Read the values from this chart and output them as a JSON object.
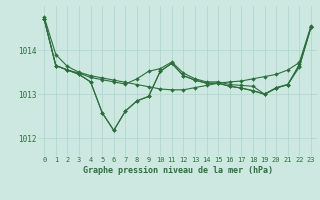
{
  "background_color": "#cce8e0",
  "grid_color": "#aad4cc",
  "line_color": "#2d6e3e",
  "title": "Graphe pression niveau de la mer (hPa)",
  "xlim": [
    -0.5,
    23.5
  ],
  "ylim": [
    1011.6,
    1015.0
  ],
  "yticks": [
    1012,
    1013,
    1014
  ],
  "xticks": [
    0,
    1,
    2,
    3,
    4,
    5,
    6,
    7,
    8,
    9,
    10,
    11,
    12,
    13,
    14,
    15,
    16,
    17,
    18,
    19,
    20,
    21,
    22,
    23
  ],
  "line1": [
    1014.75,
    1013.9,
    1013.63,
    1013.5,
    1013.42,
    1013.37,
    1013.32,
    1013.27,
    1013.22,
    1013.17,
    1013.12,
    1013.1,
    1013.1,
    1013.15,
    1013.2,
    1013.25,
    1013.28,
    1013.3,
    1013.35,
    1013.4,
    1013.45,
    1013.55,
    1013.72,
    1014.55
  ],
  "line2": [
    1014.7,
    1013.65,
    1013.55,
    1013.48,
    1013.38,
    1013.33,
    1013.28,
    1013.23,
    1013.35,
    1013.52,
    1013.58,
    1013.73,
    1013.48,
    1013.35,
    1013.28,
    1013.28,
    1013.22,
    1013.2,
    1013.18,
    1013.0,
    1013.15,
    1013.22,
    1013.65,
    1014.52
  ],
  "line3": [
    1014.7,
    1013.65,
    1013.55,
    1013.45,
    1013.28,
    1012.58,
    1012.18,
    1012.62,
    1012.85,
    1012.95,
    1013.52,
    1013.7,
    1013.42,
    1013.32,
    1013.25,
    1013.25,
    1013.18,
    1013.14,
    1013.08,
    1013.0,
    1013.14,
    1013.22,
    1013.62,
    1014.52
  ],
  "line4": [
    1014.7,
    1013.65,
    1013.55,
    1013.45,
    1013.28,
    1012.58,
    1012.18,
    1012.62,
    1012.85,
    1012.95,
    1013.52,
    1013.7,
    1013.42,
    1013.32,
    1013.25,
    1013.25,
    1013.18,
    1013.14,
    1013.08,
    1013.0,
    1013.14,
    1013.22,
    1013.68,
    1014.52
  ],
  "title_fontsize": 6.0,
  "tick_fontsize": 5.0,
  "marker_size": 2.0,
  "line_width": 0.8
}
